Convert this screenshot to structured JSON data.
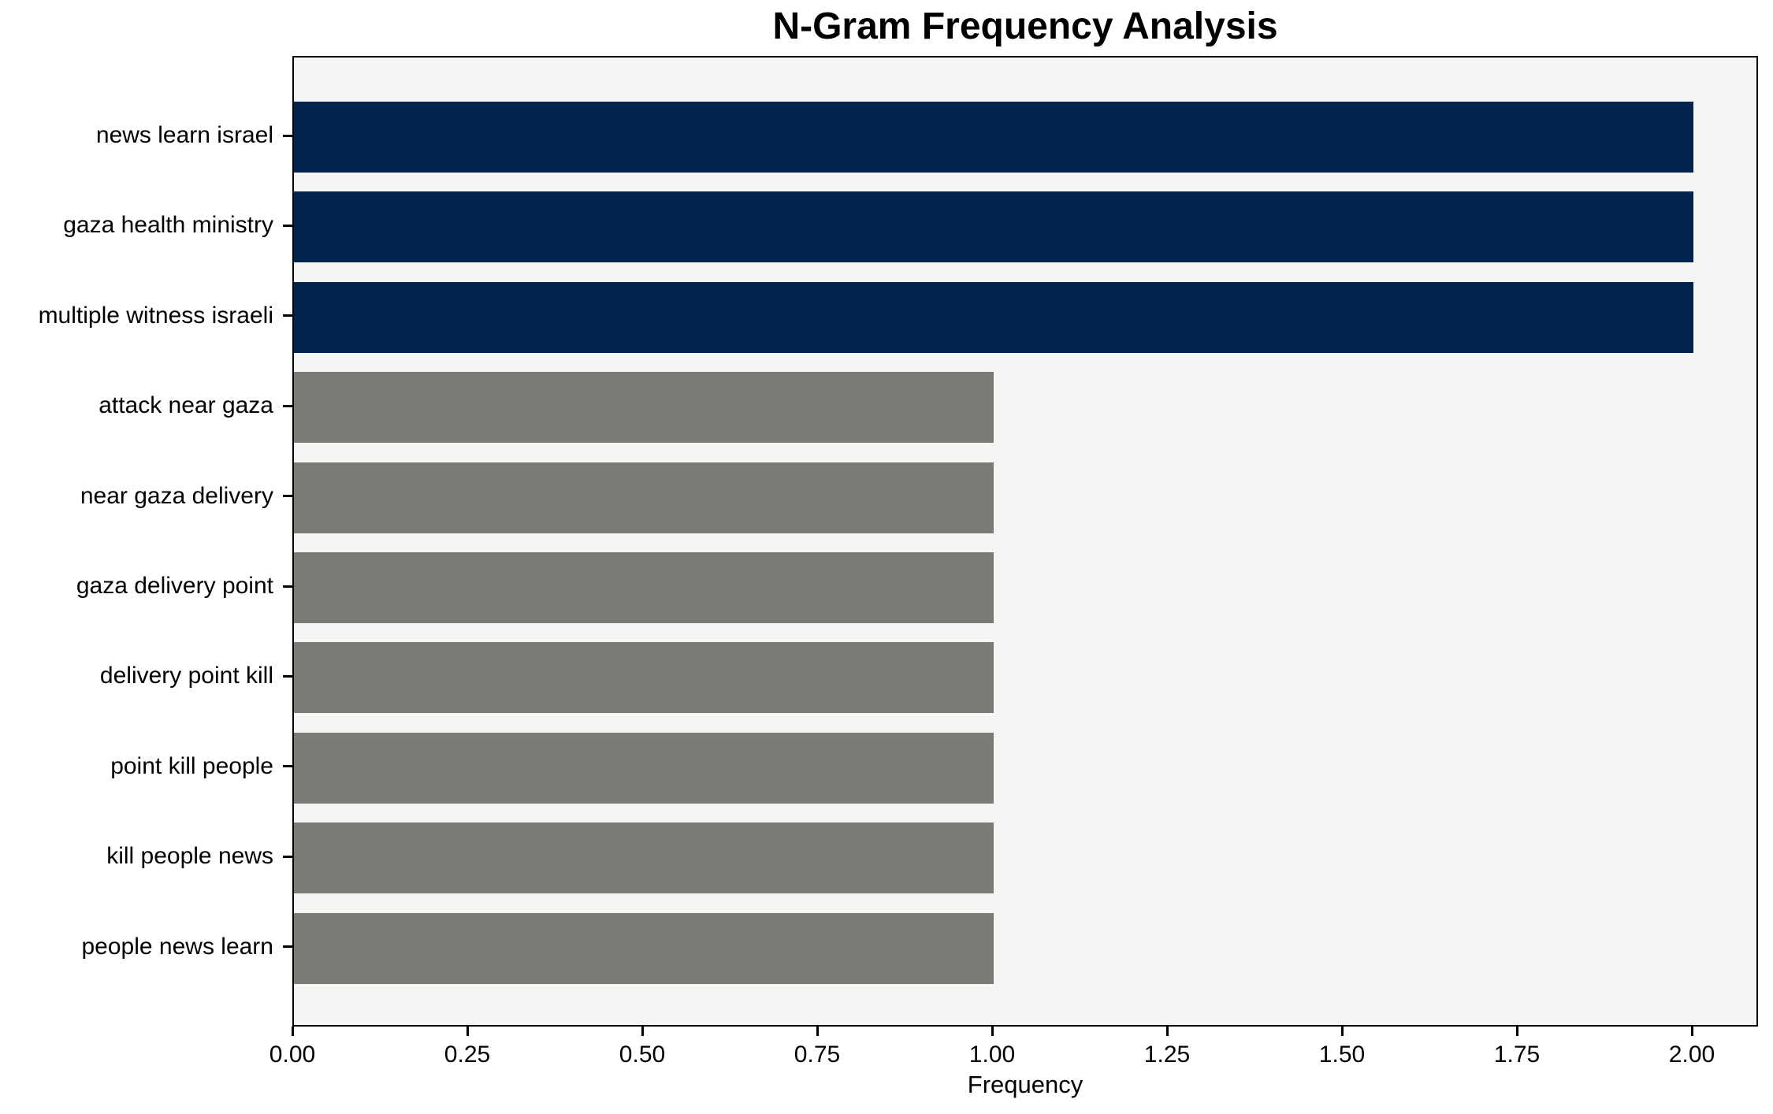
{
  "chart_data": {
    "type": "bar",
    "orientation": "horizontal",
    "title": "N-Gram Frequency Analysis",
    "xlabel": "Frequency",
    "ylabel": "",
    "categories": [
      "news learn israel",
      "gaza health ministry",
      "multiple witness israeli",
      "attack near gaza",
      "near gaza delivery",
      "gaza delivery point",
      "delivery point kill",
      "point kill people",
      "kill people news",
      "people news learn"
    ],
    "values": [
      2,
      2,
      2,
      1,
      1,
      1,
      1,
      1,
      1,
      1
    ],
    "bar_colors": [
      "#02234d",
      "#02234d",
      "#02234d",
      "#7a7a76",
      "#7a7a76",
      "#7a7a76",
      "#7a7a76",
      "#7a7a76",
      "#7a7a76",
      "#7a7a76"
    ],
    "xlim": [
      0,
      2.095
    ],
    "xticks": [
      0.0,
      0.25,
      0.5,
      0.75,
      1.0,
      1.25,
      1.5,
      1.75,
      2.0
    ],
    "xtick_labels": [
      "0.00",
      "0.25",
      "0.50",
      "0.75",
      "1.00",
      "1.25",
      "1.50",
      "1.75",
      "2.00"
    ],
    "grid": false,
    "legend": false,
    "colors": {
      "bar_high": "#02234d",
      "bar_low": "#7a7a76",
      "plot_background": "#f5f5f3",
      "figure_background": "#ffffff",
      "spine": "#000000",
      "text": "#000000"
    }
  }
}
